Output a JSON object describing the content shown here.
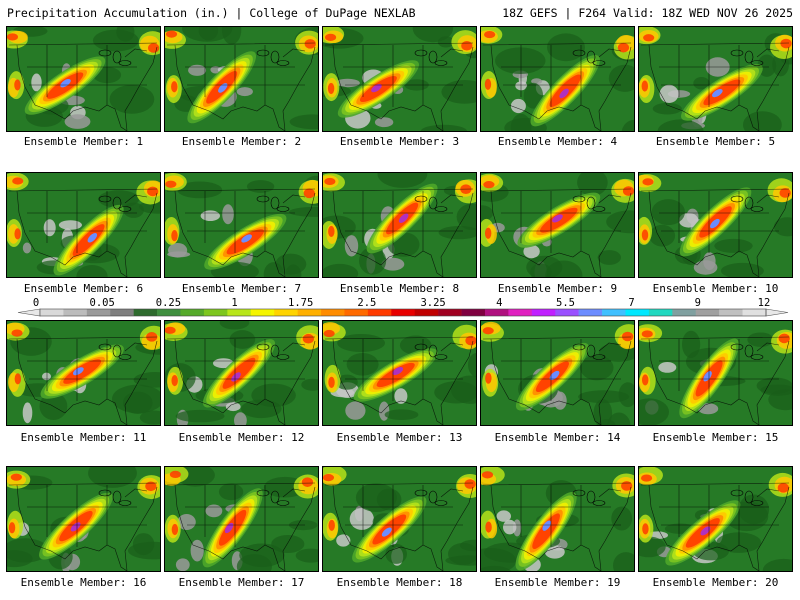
{
  "header": {
    "left_title": "Precipitation Accumulation (in.) | College of DuPage NEXLAB",
    "right_title": "18Z GEFS | F264 Valid: 18Z WED NOV 26 2025"
  },
  "colorbar": {
    "labels": [
      "0",
      "0.05",
      "0.25",
      "1",
      "1.75",
      "2.5",
      "3.25",
      "4",
      "5.5",
      "7",
      "9",
      "12"
    ],
    "colors": [
      "#d9d9d9",
      "#bcbcbc",
      "#9a9a9a",
      "#7f7f7f",
      "#2e6b2e",
      "#3f8f3f",
      "#55aa2a",
      "#7dc61e",
      "#b8e61a",
      "#f5f500",
      "#ffd400",
      "#ffb000",
      "#ff8c00",
      "#ff6a00",
      "#ff3b00",
      "#e80000",
      "#c00000",
      "#a00020",
      "#7f0040",
      "#b0107f",
      "#e020c0",
      "#c020ff",
      "#9a50ff",
      "#6c8cff",
      "#40c0ff",
      "#00e8ff",
      "#20d8c0",
      "#80a0a0",
      "#a0a0a0",
      "#c0c0c0",
      "#e0e0e0"
    ]
  },
  "members": [
    {
      "label": "Ensemble Member: 1"
    },
    {
      "label": "Ensemble Member: 2"
    },
    {
      "label": "Ensemble Member: 3"
    },
    {
      "label": "Ensemble Member: 4"
    },
    {
      "label": "Ensemble Member: 5"
    },
    {
      "label": "Ensemble Member: 6"
    },
    {
      "label": "Ensemble Member: 7"
    },
    {
      "label": "Ensemble Member: 8"
    },
    {
      "label": "Ensemble Member: 9"
    },
    {
      "label": "Ensemble Member: 10"
    },
    {
      "label": "Ensemble Member: 11"
    },
    {
      "label": "Ensemble Member: 12"
    },
    {
      "label": "Ensemble Member: 13"
    },
    {
      "label": "Ensemble Member: 14"
    },
    {
      "label": "Ensemble Member: 15"
    },
    {
      "label": "Ensemble Member: 16"
    },
    {
      "label": "Ensemble Member: 17"
    },
    {
      "label": "Ensemble Member: 18"
    },
    {
      "label": "Ensemble Member: 19"
    },
    {
      "label": "Ensemble Member: 20"
    }
  ]
}
